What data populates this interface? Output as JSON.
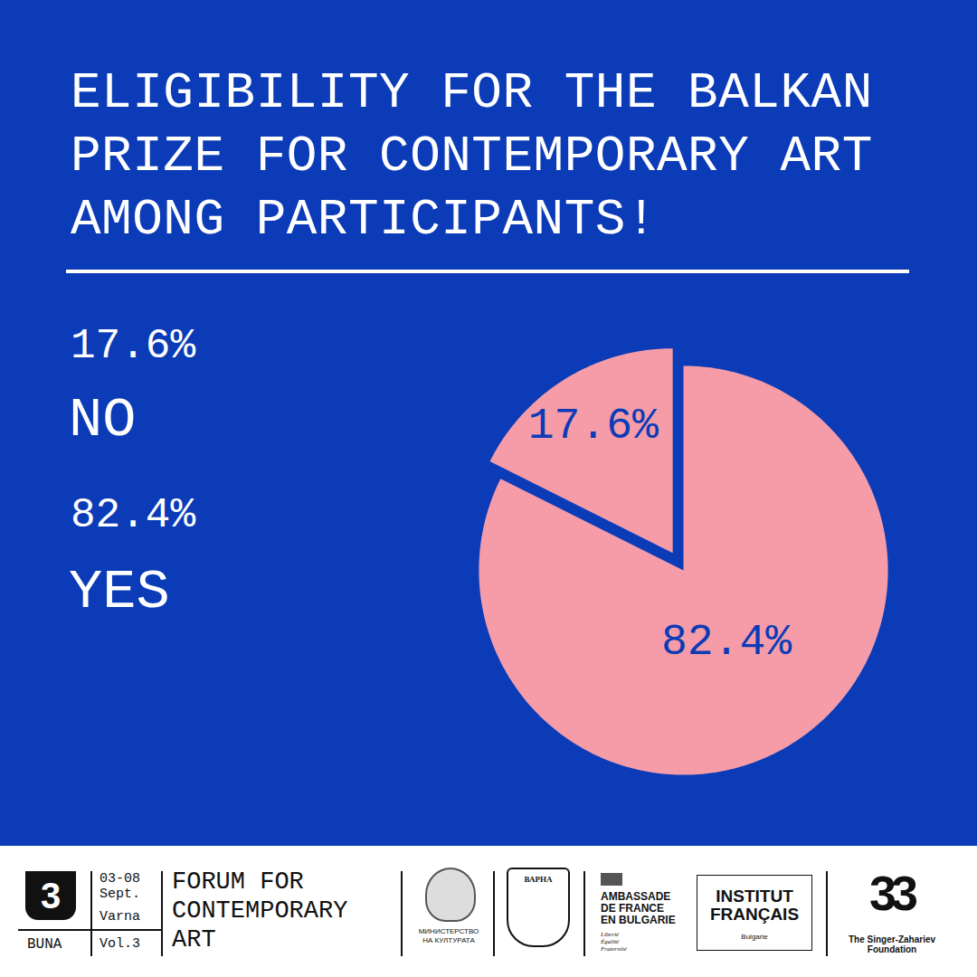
{
  "chart_data": {
    "type": "pie",
    "title": "ELIGIBILITY FOR THE BALKAN\nPRIZE FOR CONTEMPORARY ART\nAMONG PARTICIPANTS!",
    "categories": [
      "NO",
      "YES"
    ],
    "values": [
      17.6,
      82.4
    ],
    "value_labels": [
      "17.6%",
      "82.4%"
    ],
    "colors": [
      "#f59ca8",
      "#f59ca8"
    ],
    "data_labels": true
  },
  "footer": {
    "logo": "3",
    "logo_caption": "BUNA",
    "dates": "03-08\nSept.",
    "city": "Varna",
    "volume": "Vol.3",
    "event": "FORUM FOR\nCONTEMPORARY\nART",
    "ministry": "МИНИСТЕРСТВО\nНА КУЛТУРАТА",
    "city_crest": "ВАРНА",
    "embassy": "AMBASSADE\nDE FRANCE\nEN BULGARIE",
    "embassy_motto": "Liberté\nÉgalité\nFraternité",
    "institute": "INSTITUT\nFRANÇAIS",
    "institute_caption": "Bulgarie",
    "foundation_logo": "33",
    "foundation": "The Singer-Zahariev\nFoundation"
  }
}
